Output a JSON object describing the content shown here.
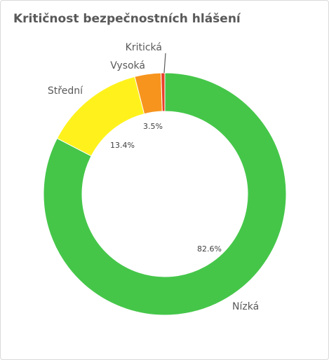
{
  "title": "Kritičnost bezpečnostních hlášení",
  "chart_data": {
    "type": "pie",
    "title": "Kritičnost bezpečnostních hlášení",
    "categories": [
      "Nízká",
      "Střední",
      "Vysoká",
      "Kritická"
    ],
    "values": [
      82.6,
      13.4,
      3.5,
      0.5
    ],
    "value_labels": [
      "82.6%",
      "13.4%",
      "3.5%",
      ""
    ],
    "colors": [
      "#45c649",
      "#fff21c",
      "#f7941d",
      "#ea3f2a"
    ],
    "donut": true,
    "legend": "none"
  }
}
